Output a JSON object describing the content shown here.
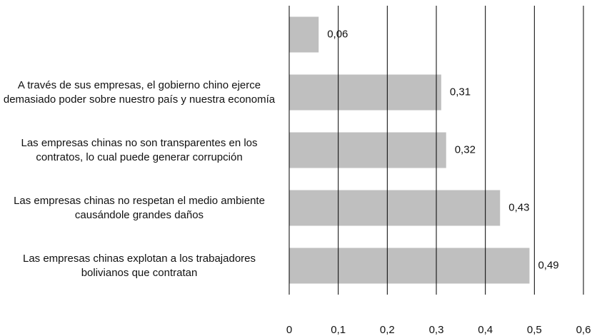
{
  "chart_data": {
    "type": "barh",
    "categories": [
      null,
      "A través de sus empresas, el gobierno chino ejerce demasiado poder sobre nuestro país y nuestra economía",
      "Las empresas chinas no son transparentes en los contratos, lo cual puede generar corrupción",
      "Las empresas chinas no respetan el medio ambiente causándole grandes daños",
      "Las empresas chinas explotan a los trabajadores bolivianos que contratan"
    ],
    "values": [
      0.06,
      0.31,
      0.32,
      0.43,
      0.49
    ],
    "value_labels": [
      "0,06",
      "0,31",
      "0,32",
      "0,43",
      "0,49"
    ],
    "color": "#bfbfbf",
    "xlim": [
      0,
      0.6
    ],
    "xticks": [
      0,
      {
        "value": 0.1,
        "label": "0,1"
      },
      {
        "value": 0.2,
        "label": "0,2"
      },
      {
        "value": 0.3,
        "label": "0,3"
      },
      {
        "value": 0.4,
        "label": "0,4"
      },
      {
        "value": 0.5,
        "label": "0,5"
      },
      {
        "value": 0.6,
        "label": "0,6"
      }
    ],
    "grid": true
  }
}
